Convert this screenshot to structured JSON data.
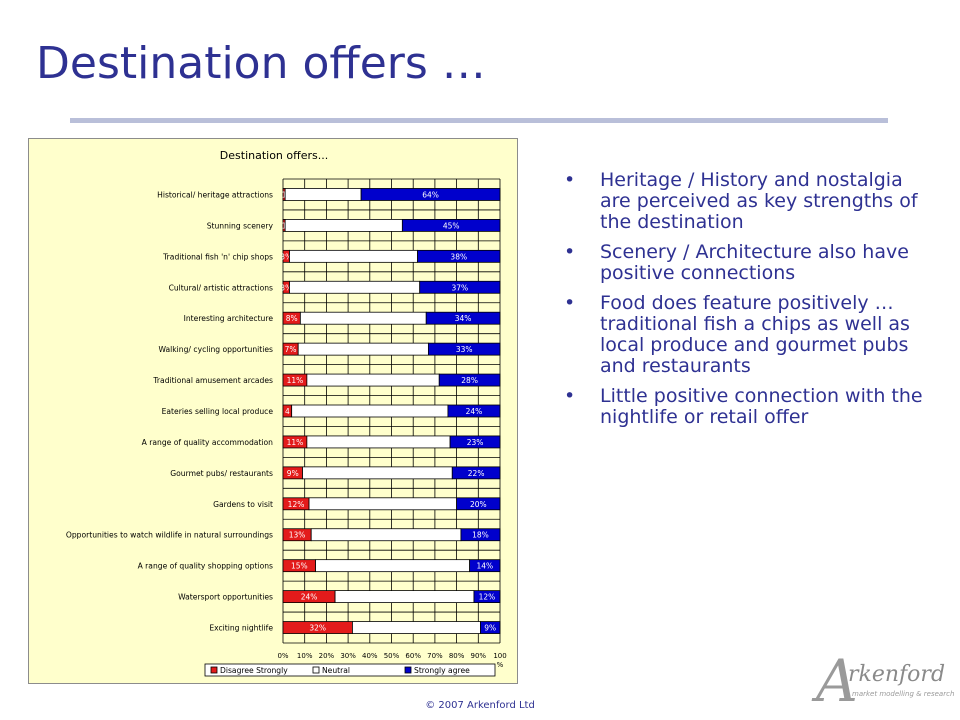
{
  "page": {
    "title": "Destination offers …",
    "bullets": [
      "Heritage / History and nostalgia are perceived as key strengths of the destination",
      "Scenery / Architecture also have positive connections",
      "Food does feature positively … traditional fish a chips as well as local produce and gourmet pubs and restaurants",
      "Little positive connection with the nightlife or retail offer"
    ],
    "copyright": "© 2007 Arkenford Ltd",
    "logo": {
      "letter": "A",
      "word": "rkenford",
      "tagline": "market modelling & research"
    }
  },
  "colors": {
    "title": "#2e3192",
    "disagree": "#e31b1b",
    "neutral": "#ffffff",
    "agree": "#0000cc",
    "chart_bg": "#ffffcc"
  },
  "chart_data": {
    "type": "bar",
    "orientation": "horizontal",
    "stacked": "100%",
    "title": "Destination offers...",
    "categories": [
      "Historical/ heritage attractions",
      "Stunning scenery",
      "Traditional fish 'n' chip shops",
      "Cultural/ artistic attractions",
      "Interesting architecture",
      "Walking/ cycling opportunities",
      "Traditional amusement arcades",
      "Eateries selling local produce",
      "A range of quality accommodation",
      "Gourmet pubs/ restaurants",
      "Gardens to visit",
      "Opportunities to watch wildlife in natural surroundings",
      "A range of quality shopping options",
      "Watersport opportunities",
      "Exciting nightlife"
    ],
    "series": [
      {
        "name": "Disagree Strongly",
        "values": [
          1,
          1,
          3,
          3,
          8,
          7,
          11,
          4,
          11,
          9,
          12,
          13,
          15,
          24,
          32
        ],
        "labels": [
          "1",
          "1",
          "3%",
          "3%",
          "8%",
          "7%",
          "11%",
          "4",
          "11%",
          "9%",
          "12%",
          "13%",
          "15%",
          "24%",
          "32%"
        ]
      },
      {
        "name": "Neutral",
        "values": [
          35,
          54,
          59,
          60,
          58,
          60,
          61,
          72,
          66,
          69,
          68,
          69,
          71,
          64,
          59
        ]
      },
      {
        "name": "Strongly agree",
        "values": [
          64,
          45,
          38,
          37,
          34,
          33,
          28,
          24,
          23,
          22,
          20,
          18,
          14,
          12,
          9
        ],
        "labels": [
          "64%",
          "45%",
          "38%",
          "37%",
          "34%",
          "33%",
          "28%",
          "24%",
          "23%",
          "22%",
          "20%",
          "18%",
          "14%",
          "12%",
          "9%"
        ]
      }
    ],
    "x_ticks": [
      "0%",
      "10%",
      "20%",
      "30%",
      "40%",
      "50%",
      "60%",
      "70%",
      "80%",
      "90%",
      "100\n%"
    ],
    "xlim": [
      0,
      100
    ],
    "grid": true,
    "legend_position": "bottom"
  }
}
